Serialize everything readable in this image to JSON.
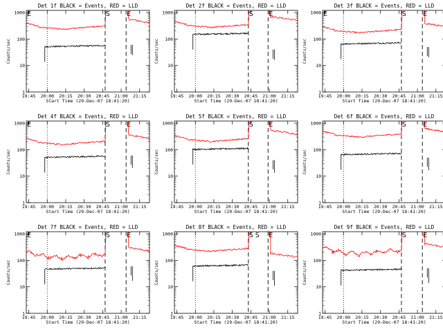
{
  "figure": {
    "xlabel": "Start Time (29-Dec-07 18:41:20)",
    "ylabel": "Counts/sec"
  },
  "chart_data": [
    {
      "type": "line",
      "title": "Det 1f BLACK = Events, RED = LLD",
      "xlabel": "Start Time (29-Dec-07 18:41:20)",
      "ylabel": "Counts/sec",
      "yscale": "log",
      "ylim": [
        1,
        1200
      ],
      "x_ticks": [
        "19:45",
        "20:00",
        "20:15",
        "20:30",
        "20:45",
        "21:00",
        "21:15"
      ],
      "y_ticks": [
        "1",
        "10",
        "100",
        "1000"
      ],
      "markers": [
        {
          "label": "E",
          "x": 0.0
        },
        {
          "label": "S",
          "x": 0.64
        },
        {
          "label": "E",
          "x": 0.81
        }
      ],
      "series": [
        {
          "color": "#ff0000",
          "level": 300,
          "bump": 1.0,
          "end": 400,
          "wavy": false
        },
        {
          "color": "#000000",
          "level": 55,
          "gap": [
            0.64,
            0.81
          ],
          "post_stub": 60
        }
      ]
    },
    {
      "type": "line",
      "title": "Det 2f BLACK = Events, RED = LLD",
      "xlabel": "Start Time (29-Dec-07 18:41:20)",
      "ylabel": "Counts/sec",
      "yscale": "log",
      "ylim": [
        1,
        1200
      ],
      "x_ticks": [
        "19:45",
        "20:00",
        "20:15",
        "20:30",
        "20:45",
        "21:00",
        "21:15"
      ],
      "y_ticks": [
        "1",
        "10",
        "100",
        "1000"
      ],
      "markers": [
        {
          "label": "S",
          "x": 0.6
        },
        {
          "label": "E",
          "x": 0.76
        }
      ],
      "series": [
        {
          "color": "#ff0000",
          "level": 350,
          "bump": 1.1,
          "end": 500,
          "wavy": false
        },
        {
          "color": "#000000",
          "level": 160,
          "gap": [
            0.6,
            0.76
          ],
          "post_stub": 40
        }
      ]
    },
    {
      "type": "line",
      "title": "Det 3f BLACK = Events, RED = LLD",
      "xlabel": "Start Time (29-Dec-07 18:41:20)",
      "ylabel": "Counts/sec",
      "yscale": "log",
      "ylim": [
        1,
        1200
      ],
      "x_ticks": [
        "19:45",
        "20:00",
        "20:15",
        "20:30",
        "20:45",
        "21:00",
        "21:15"
      ],
      "y_ticks": [
        "1",
        "10",
        "100",
        "1000"
      ],
      "markers": [
        {
          "label": "E",
          "x": 0.0
        },
        {
          "label": "S",
          "x": 0.64
        },
        {
          "label": "E",
          "x": 0.81
        }
      ],
      "series": [
        {
          "color": "#ff0000",
          "level": 220,
          "bump": 1.0,
          "end": 280,
          "wavy": false
        },
        {
          "color": "#000000",
          "level": 70,
          "gap": [
            0.64,
            0.81
          ],
          "post_stub": 50
        }
      ]
    },
    {
      "type": "line",
      "title": "Det 4f BLACK = Events, RED = LLD",
      "xlabel": "Start Time (29-Dec-07 18:41:20)",
      "ylabel": "Counts/sec",
      "yscale": "log",
      "ylim": [
        1,
        1200
      ],
      "x_ticks": [
        "19:45",
        "20:00",
        "20:15",
        "20:30",
        "20:45",
        "21:00",
        "21:15"
      ],
      "y_ticks": [
        "1",
        "10",
        "100",
        "1000"
      ],
      "markers": [
        {
          "label": "E",
          "x": 0.0
        },
        {
          "label": "S",
          "x": 0.64
        },
        {
          "label": "E",
          "x": 0.81
        }
      ],
      "series": [
        {
          "color": "#ff0000",
          "level": 200,
          "bump": 1.0,
          "end": 260,
          "wavy": false
        },
        {
          "color": "#000000",
          "level": 55,
          "gap": [
            0.64,
            0.81
          ],
          "post_stub": 60
        }
      ]
    },
    {
      "type": "line",
      "title": "Det 5f BLACK = Events, RED = LLD",
      "xlabel": "Start Time (29-Dec-07 18:41:20)",
      "ylabel": "Counts/sec",
      "yscale": "log",
      "ylim": [
        1,
        1200
      ],
      "x_ticks": [
        "19:45",
        "20:00",
        "20:15",
        "20:30",
        "20:45",
        "21:00",
        "21:15"
      ],
      "y_ticks": [
        "1",
        "10",
        "100",
        "1000"
      ],
      "markers": [
        {
          "label": "S",
          "x": 0.6
        },
        {
          "label": "E",
          "x": 0.76
        }
      ],
      "series": [
        {
          "color": "#ff0000",
          "level": 260,
          "bump": 1.1,
          "end": 380,
          "wavy": false
        },
        {
          "color": "#000000",
          "level": 110,
          "gap": [
            0.6,
            0.76
          ],
          "post_stub": 40
        }
      ]
    },
    {
      "type": "line",
      "title": "Det 6f BLACK = Events, RED = LLD",
      "xlabel": "Start Time (29-Dec-07 18:41:20)",
      "ylabel": "Counts/sec",
      "yscale": "log",
      "ylim": [
        1,
        1200
      ],
      "x_ticks": [
        "19:45",
        "20:00",
        "20:15",
        "20:30",
        "20:45",
        "21:00",
        "21:15"
      ],
      "y_ticks": [
        "1",
        "10",
        "100",
        "1000"
      ],
      "markers": [
        {
          "label": "S",
          "x": 0.64
        },
        {
          "label": "E",
          "x": 0.81
        }
      ],
      "series": [
        {
          "color": "#ff0000",
          "level": 380,
          "bump": 1.0,
          "end": 450,
          "wavy": false
        },
        {
          "color": "#000000",
          "level": 70,
          "gap": [
            0.64,
            0.81
          ],
          "post_stub": 50
        }
      ]
    },
    {
      "type": "line",
      "title": "Det 7f BLACK = Events, RED = LLD",
      "xlabel": "Start Time (29-Dec-07 18:41:20)",
      "ylabel": "Counts/sec",
      "yscale": "log",
      "ylim": [
        1,
        1200
      ],
      "x_ticks": [
        "19:45",
        "20:00",
        "20:15",
        "20:30",
        "20:45",
        "21:00",
        "21:15"
      ],
      "y_ticks": [
        "1",
        "10",
        "100",
        "1000"
      ],
      "markers": [
        {
          "label": "E",
          "x": 0.0
        },
        {
          "label": "S",
          "x": 0.64
        },
        {
          "label": "E",
          "x": 0.81
        }
      ],
      "series": [
        {
          "color": "#ff0000",
          "level": 160,
          "bump": 1.0,
          "end": 220,
          "wavy": true
        },
        {
          "color": "#000000",
          "level": 50,
          "gap": [
            0.64,
            0.81
          ],
          "post_stub": 60
        }
      ]
    },
    {
      "type": "line",
      "title": "Det 8f BLACK = Events, RED = LLD",
      "xlabel": "Start Time (29-Dec-07 18:41:20)",
      "ylabel": "Counts/sec",
      "yscale": "log",
      "ylim": [
        1,
        1200
      ],
      "x_ticks": [
        "19:45",
        "20:00",
        "20:15",
        "20:30",
        "20:45",
        "21:00",
        "21:15"
      ],
      "y_ticks": [
        "1",
        "10",
        "100",
        "1000"
      ],
      "markers": [
        {
          "label": "S",
          "x": 0.6
        },
        {
          "label": "S",
          "x": 0.65
        },
        {
          "label": "E",
          "x": 0.76
        }
      ],
      "series": [
        {
          "color": "#ff0000",
          "level": 280,
          "bump": 1.1,
          "end": 130,
          "wavy": false
        },
        {
          "color": "#000000",
          "level": 65,
          "gap": [
            0.6,
            0.76
          ],
          "post_stub": 40
        }
      ]
    },
    {
      "type": "line",
      "title": "Det 9f BLACK = Events, RED = LLD",
      "xlabel": "Start Time (29-Dec-07 18:41:20)",
      "ylabel": "Counts/sec",
      "yscale": "log",
      "ylim": [
        1,
        1200
      ],
      "x_ticks": [
        "19:45",
        "20:00",
        "20:15",
        "20:30",
        "20:45",
        "21:00",
        "21:15"
      ],
      "y_ticks": [
        "1",
        "10",
        "100",
        "1000"
      ],
      "markers": [
        {
          "label": "S",
          "x": 0.64
        },
        {
          "label": "E",
          "x": 0.81
        }
      ],
      "series": [
        {
          "color": "#ff0000",
          "level": 230,
          "bump": 1.0,
          "end": 300,
          "wavy": true
        },
        {
          "color": "#000000",
          "level": 45,
          "gap": [
            0.64,
            0.81
          ],
          "post_stub": 50
        }
      ]
    }
  ]
}
